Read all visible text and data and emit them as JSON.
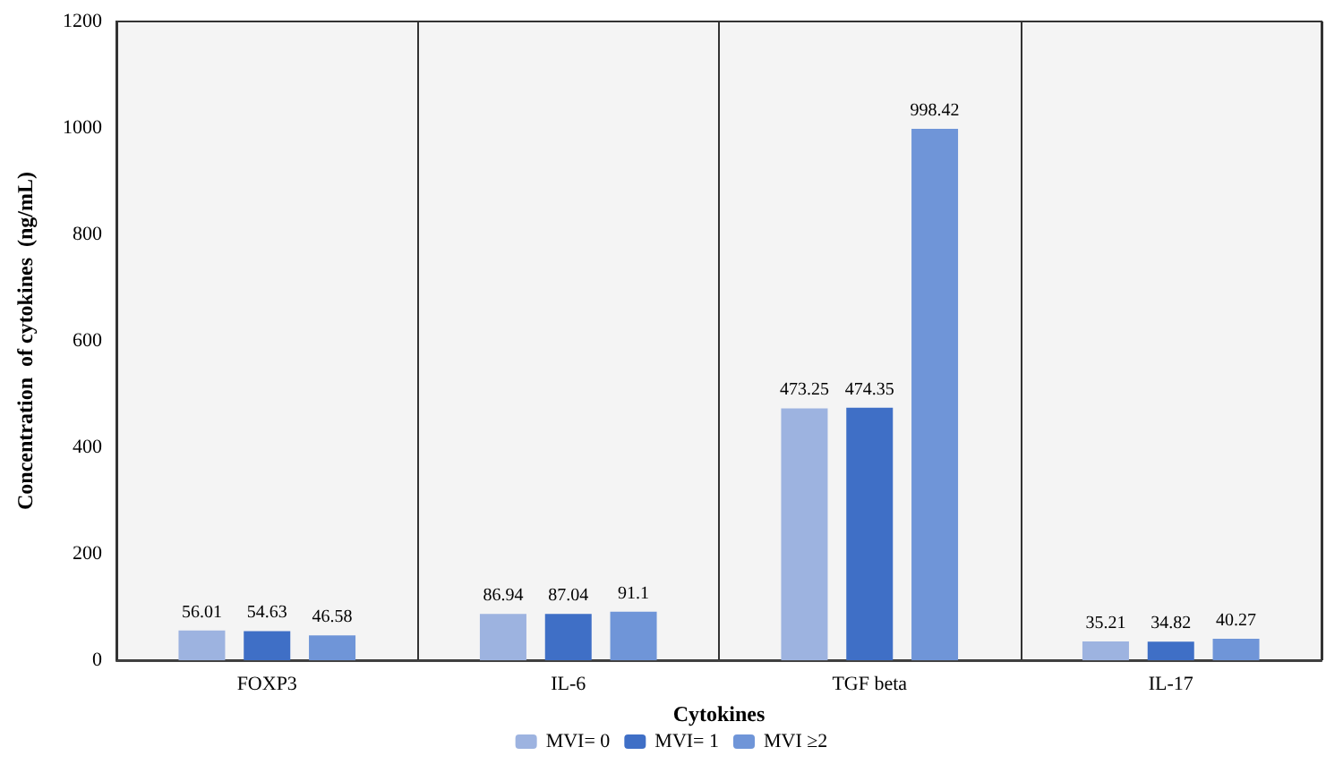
{
  "chart_data": {
    "type": "bar",
    "xlabel": "Cytokines",
    "ylabel": "Concentration  of cytokines  (ng/mL)",
    "categories": [
      "FOXP3",
      "IL-6",
      "TGF beta",
      "IL-17"
    ],
    "series": [
      {
        "name": "MVI= 0",
        "color": "#9db3e0",
        "values": [
          56.01,
          86.94,
          473.25,
          35.21
        ]
      },
      {
        "name": "MVI= 1",
        "color": "#3f6fc6",
        "values": [
          54.63,
          87.04,
          474.35,
          34.82
        ]
      },
      {
        "name": "MVI ≥2",
        "color": "#6f95d8",
        "values": [
          46.58,
          91.1,
          998.42,
          40.27
        ]
      }
    ],
    "ylim": [
      0,
      1200
    ],
    "yticks": [
      0,
      200,
      400,
      600,
      800,
      1000,
      1200
    ],
    "grid": "x",
    "legend": "bottom",
    "data_labels": true
  }
}
